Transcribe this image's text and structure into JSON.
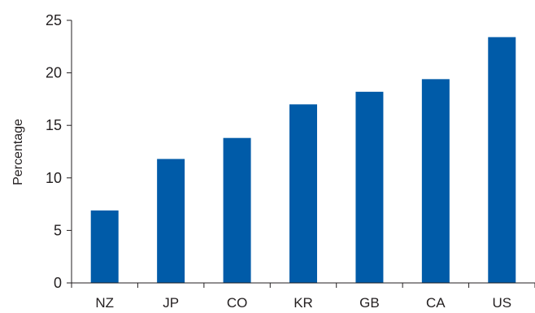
{
  "chart_data": {
    "type": "bar",
    "title": "",
    "xlabel": "",
    "ylabel": "Percentage",
    "categories": [
      "NZ",
      "JP",
      "CO",
      "KR",
      "GB",
      "CA",
      "US"
    ],
    "values": [
      6.9,
      11.8,
      13.8,
      17.0,
      18.2,
      19.4,
      23.4
    ],
    "ylim": [
      0,
      25
    ],
    "yticks": [
      0,
      5,
      10,
      15,
      20,
      25
    ],
    "grid": false,
    "legend": "none",
    "colors": {
      "bar": "#005ba8",
      "axis": "#231f20",
      "text": "#231f20"
    }
  }
}
